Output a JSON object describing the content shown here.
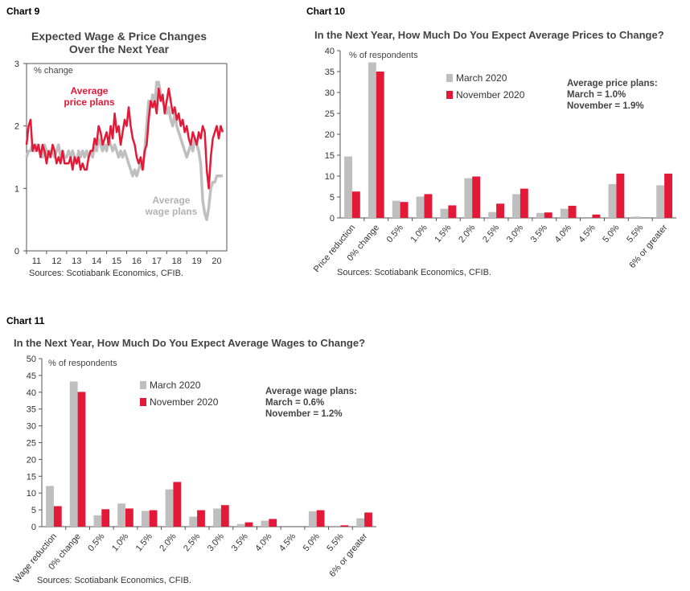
{
  "colors": {
    "march": "#bfbfbf",
    "november": "#e31937",
    "axis": "#555555",
    "text": "#444444"
  },
  "chart_labels": [
    "Chart 9",
    "Chart 10",
    "Chart 11"
  ],
  "sources": "Sources: Scotiabank Economics, CFIB.",
  "chart_data": [
    {
      "id": "chart9",
      "type": "line",
      "title_lines": [
        "Expected Wage & Price Changes",
        "Over the Next Year"
      ],
      "unit_label": "% change",
      "ylim": [
        0,
        3
      ],
      "yticks": [
        0,
        1,
        2,
        3
      ],
      "xlim": [
        2011,
        2021
      ],
      "xticks": [
        2011,
        2012,
        2013,
        2014,
        2015,
        2016,
        2017,
        2018,
        2019,
        2020
      ],
      "xtick_labels": [
        "11",
        "12",
        "13",
        "14",
        "15",
        "16",
        "17",
        "18",
        "19",
        "20"
      ],
      "annotations": {
        "price": [
          "Average",
          "price plans"
        ],
        "wage": [
          "Average",
          "wage plans"
        ]
      },
      "series": [
        {
          "key": "price",
          "color": "#e31937",
          "x": [
            2011.0,
            2011.1,
            2011.2,
            2011.3,
            2011.4,
            2011.5,
            2011.6,
            2011.7,
            2011.8,
            2011.9,
            2012.0,
            2012.1,
            2012.2,
            2012.3,
            2012.4,
            2012.5,
            2012.6,
            2012.7,
            2012.8,
            2012.9,
            2013.0,
            2013.1,
            2013.2,
            2013.3,
            2013.4,
            2013.5,
            2013.6,
            2013.7,
            2013.8,
            2013.9,
            2014.0,
            2014.1,
            2014.2,
            2014.3,
            2014.4,
            2014.5,
            2014.6,
            2014.7,
            2014.8,
            2014.9,
            2015.0,
            2015.1,
            2015.2,
            2015.3,
            2015.4,
            2015.5,
            2015.6,
            2015.7,
            2015.8,
            2015.9,
            2016.0,
            2016.1,
            2016.2,
            2016.3,
            2016.4,
            2016.5,
            2016.6,
            2016.7,
            2016.8,
            2016.9,
            2017.0,
            2017.1,
            2017.2,
            2017.3,
            2017.4,
            2017.5,
            2017.6,
            2017.7,
            2017.8,
            2017.9,
            2018.0,
            2018.1,
            2018.2,
            2018.3,
            2018.4,
            2018.5,
            2018.6,
            2018.7,
            2018.8,
            2018.9,
            2019.0,
            2019.1,
            2019.2,
            2019.3,
            2019.4,
            2019.5,
            2019.6,
            2019.7,
            2019.8,
            2019.9,
            2020.0,
            2020.1,
            2020.2,
            2020.3,
            2020.4,
            2020.5,
            2020.6,
            2020.7,
            2020.8
          ],
          "y": [
            1.7,
            2.0,
            2.1,
            1.6,
            1.7,
            1.6,
            1.7,
            1.5,
            1.7,
            1.6,
            1.4,
            1.6,
            1.5,
            1.7,
            1.6,
            1.4,
            1.5,
            1.4,
            1.6,
            1.4,
            1.4,
            1.4,
            1.5,
            1.3,
            1.5,
            1.4,
            1.5,
            1.3,
            1.4,
            1.3,
            1.3,
            1.5,
            1.6,
            1.6,
            1.8,
            1.7,
            2.0,
            1.9,
            1.7,
            1.8,
            1.9,
            1.7,
            2.0,
            1.8,
            2.2,
            1.9,
            2.0,
            1.7,
            1.9,
            2.1,
            2.0,
            2.3,
            2.0,
            1.8,
            1.7,
            1.5,
            1.4,
            1.5,
            1.3,
            1.6,
            1.7,
            2.1,
            2.4,
            2.3,
            2.4,
            2.2,
            2.6,
            2.4,
            2.5,
            2.2,
            2.4,
            2.6,
            2.4,
            2.2,
            2.3,
            2.1,
            2.2,
            2.0,
            2.1,
            1.9,
            2.0,
            1.8,
            1.7,
            1.9,
            1.8,
            1.7,
            1.9,
            1.8,
            2.0,
            1.9,
            1.3,
            1.0,
            1.5,
            1.8,
            1.9,
            2.0,
            1.8,
            2.0,
            1.9
          ]
        },
        {
          "key": "wage",
          "color": "#bfbfbf",
          "x": [
            2011.0,
            2011.1,
            2011.2,
            2011.3,
            2011.4,
            2011.5,
            2011.6,
            2011.7,
            2011.8,
            2011.9,
            2012.0,
            2012.1,
            2012.2,
            2012.3,
            2012.4,
            2012.5,
            2012.6,
            2012.7,
            2012.8,
            2012.9,
            2013.0,
            2013.1,
            2013.2,
            2013.3,
            2013.4,
            2013.5,
            2013.6,
            2013.7,
            2013.8,
            2013.9,
            2014.0,
            2014.1,
            2014.2,
            2014.3,
            2014.4,
            2014.5,
            2014.6,
            2014.7,
            2014.8,
            2014.9,
            2015.0,
            2015.1,
            2015.2,
            2015.3,
            2015.4,
            2015.5,
            2015.6,
            2015.7,
            2015.8,
            2015.9,
            2016.0,
            2016.1,
            2016.2,
            2016.3,
            2016.4,
            2016.5,
            2016.6,
            2016.7,
            2016.8,
            2016.9,
            2017.0,
            2017.1,
            2017.2,
            2017.3,
            2017.4,
            2017.5,
            2017.6,
            2017.7,
            2017.8,
            2017.9,
            2018.0,
            2018.1,
            2018.2,
            2018.3,
            2018.4,
            2018.5,
            2018.6,
            2018.7,
            2018.8,
            2018.9,
            2019.0,
            2019.1,
            2019.2,
            2019.3,
            2019.4,
            2019.5,
            2019.6,
            2019.7,
            2019.8,
            2019.9,
            2020.0,
            2020.1,
            2020.2,
            2020.3,
            2020.4,
            2020.5,
            2020.6,
            2020.7,
            2020.8
          ],
          "y": [
            1.5,
            1.6,
            1.6,
            1.7,
            1.6,
            1.7,
            1.6,
            1.6,
            1.5,
            1.7,
            1.6,
            1.5,
            1.6,
            1.6,
            1.5,
            1.6,
            1.7,
            1.5,
            1.6,
            1.5,
            1.5,
            1.6,
            1.5,
            1.6,
            1.5,
            1.4,
            1.6,
            1.5,
            1.6,
            1.5,
            1.6,
            1.5,
            1.6,
            1.5,
            1.7,
            1.6,
            1.8,
            1.7,
            1.6,
            1.7,
            1.6,
            1.8,
            1.7,
            1.6,
            1.7,
            1.6,
            1.5,
            1.6,
            1.5,
            1.6,
            1.5,
            1.4,
            1.3,
            1.2,
            1.3,
            1.2,
            1.3,
            1.4,
            1.3,
            1.6,
            2.0,
            2.4,
            2.3,
            2.5,
            2.3,
            2.7,
            2.7,
            2.5,
            2.4,
            2.3,
            2.2,
            2.3,
            2.1,
            2.0,
            2.2,
            2.0,
            1.9,
            1.8,
            1.7,
            1.6,
            1.5,
            1.6,
            1.7,
            1.6,
            1.8,
            1.7,
            1.6,
            1.4,
            0.8,
            0.6,
            0.5,
            0.7,
            1.0,
            1.1,
            1.1,
            1.2,
            1.2,
            1.2,
            1.2
          ]
        }
      ]
    },
    {
      "id": "chart10",
      "type": "bar",
      "title": "In the Next Year, How Much Do You Expect Average Prices to Change?",
      "unit_label": "% of respondents",
      "ylim": [
        0,
        40
      ],
      "yticks": [
        0,
        5,
        10,
        15,
        20,
        25,
        30,
        35,
        40
      ],
      "categories": [
        "Price reduction",
        "0% change",
        "0.5%",
        "1.0%",
        "1.5%",
        "2.0%",
        "2.5%",
        "3.0%",
        "3.5%",
        "4.0%",
        "4.5%",
        "5.0%",
        "5.5%",
        "6% or greater"
      ],
      "series": [
        {
          "name": "March 2020",
          "color": "#bfbfbf",
          "values": [
            14.7,
            37.2,
            4.1,
            5.1,
            2.2,
            9.5,
            1.4,
            5.7,
            1.2,
            2.2,
            0.0,
            8.1,
            0.3,
            7.8
          ]
        },
        {
          "name": "November 2020",
          "color": "#e31937",
          "values": [
            6.3,
            35.0,
            3.8,
            5.7,
            3.0,
            9.9,
            3.4,
            7.0,
            1.3,
            2.9,
            0.8,
            10.6,
            0.0,
            10.6
          ]
        }
      ],
      "note": [
        "Average price plans:",
        "March = 1.0%",
        "November = 1.9%"
      ]
    },
    {
      "id": "chart11",
      "type": "bar",
      "title": "In the Next Year, How Much Do You Expect Average Wages to Change?",
      "unit_label": "% of respondents",
      "ylim": [
        0,
        50
      ],
      "yticks": [
        0,
        5,
        10,
        15,
        20,
        25,
        30,
        35,
        40,
        45,
        50
      ],
      "categories": [
        "Wage reduction",
        "0% change",
        "0.5%",
        "1.0%",
        "1.5%",
        "2.0%",
        "2.5%",
        "3.0%",
        "3.5%",
        "4.0%",
        "4.5%",
        "5.0%",
        "5.5%",
        "6% or greater"
      ],
      "series": [
        {
          "name": "March 2020",
          "color": "#bfbfbf",
          "values": [
            12.1,
            43.2,
            3.4,
            6.9,
            4.7,
            11.1,
            3.0,
            5.4,
            0.8,
            1.8,
            0.0,
            4.6,
            0.0,
            2.5
          ]
        },
        {
          "name": "November 2020",
          "color": "#e31937",
          "values": [
            6.1,
            40.1,
            5.2,
            5.4,
            4.9,
            13.3,
            4.9,
            6.4,
            1.3,
            2.3,
            0.0,
            4.9,
            0.4,
            4.2
          ]
        }
      ],
      "note": [
        "Average wage plans:",
        "March = 0.6%",
        "November = 1.2%"
      ]
    }
  ]
}
